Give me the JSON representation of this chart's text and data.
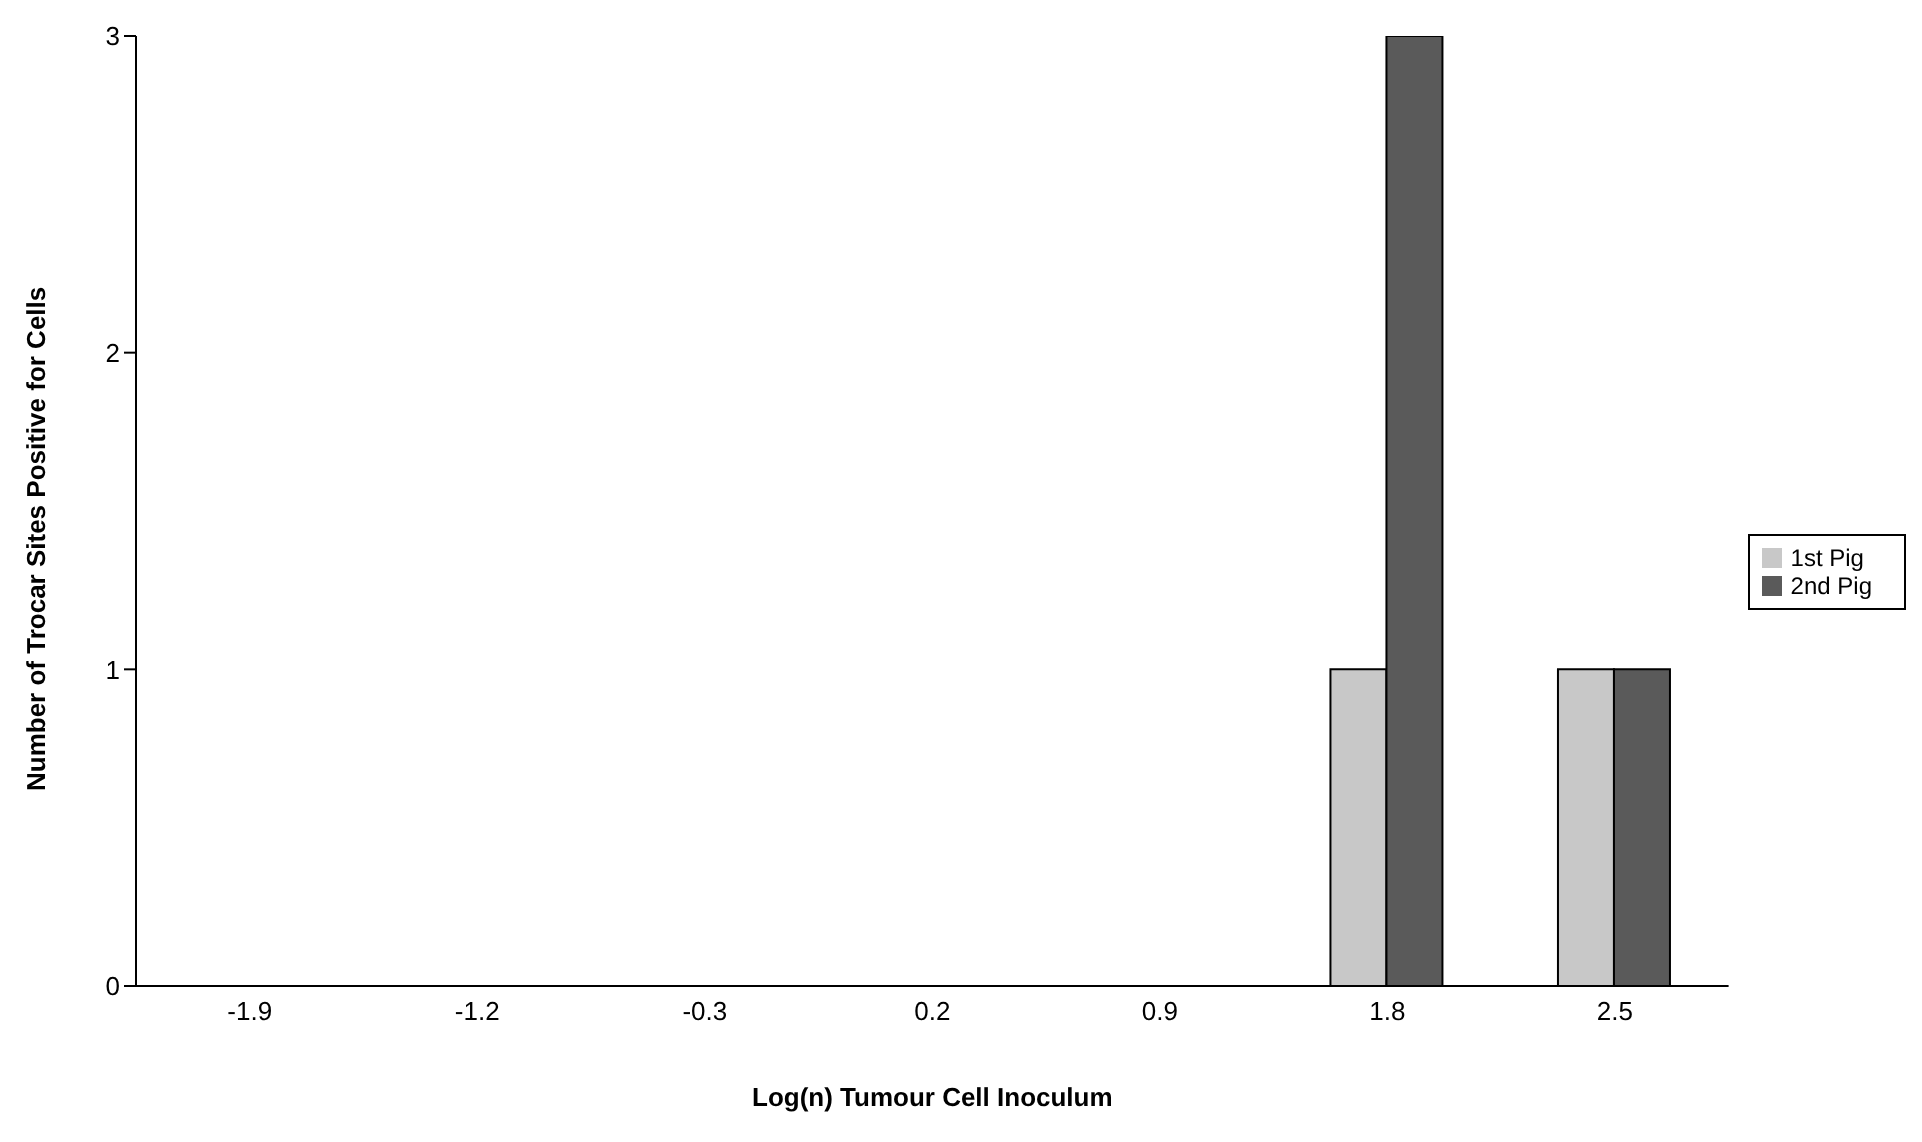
{
  "chart_data": {
    "type": "bar",
    "xlabel": "Log(n) Tumour Cell Inoculum",
    "ylabel": "Number of Trocar Sites Positive for Cells",
    "categories": [
      "-1.9",
      "-1.2",
      "-0.3",
      "0.2",
      "0.9",
      "1.8",
      "2.5"
    ],
    "series": [
      {
        "name": "1st Pig",
        "color": "#c8c8c8",
        "values": [
          0,
          0,
          0,
          0,
          0,
          1,
          1
        ]
      },
      {
        "name": "2nd Pig",
        "color": "#5a5a5a",
        "values": [
          0,
          0,
          0,
          0,
          0,
          3,
          1
        ]
      }
    ],
    "ylim": [
      0,
      3
    ],
    "yticks": [
      0,
      1,
      2,
      3
    ],
    "grid": false,
    "legend": "right"
  }
}
